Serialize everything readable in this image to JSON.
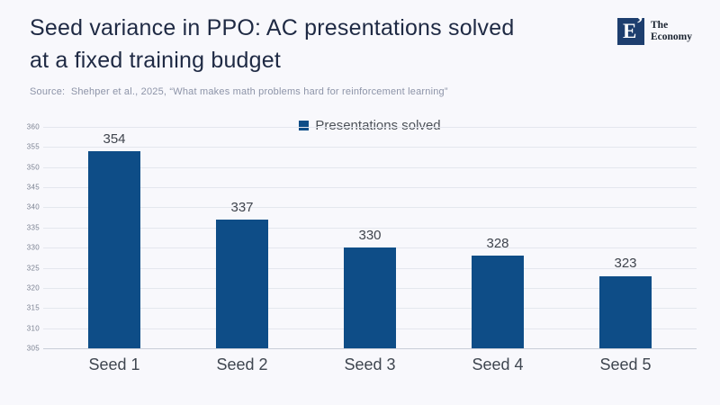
{
  "header": {
    "title_line1": "Seed variance in PPO: AC presentations solved",
    "title_line2": "at a fixed training budget",
    "source": "Source:  Shehper et al., 2025, “What makes math problems hard for reinforcement learning”",
    "logo": {
      "letter": "E",
      "mark": "’",
      "name_line1": "The",
      "name_line2": "Economy"
    }
  },
  "legend": {
    "label": "Presentations solved"
  },
  "chart_data": {
    "type": "bar",
    "categories": [
      "Seed 1",
      "Seed 2",
      "Seed 3",
      "Seed 4",
      "Seed 5"
    ],
    "values": [
      354,
      337,
      330,
      328,
      323
    ],
    "series_name": "Presentations solved",
    "title": "Seed variance in PPO: AC presentations solved at a fixed training budget",
    "xlabel": "",
    "ylabel": "",
    "ylim": [
      305,
      360
    ],
    "ytick_step": 5,
    "grid": true,
    "legend_position": "top-center",
    "bar_color": "#0e4d87",
    "show_value_labels": true
  },
  "colors": {
    "accent": "#0e4d87",
    "title_text": "#1f2a44",
    "background": "#f8f8fc",
    "logo_navy": "#1d3e6e"
  }
}
